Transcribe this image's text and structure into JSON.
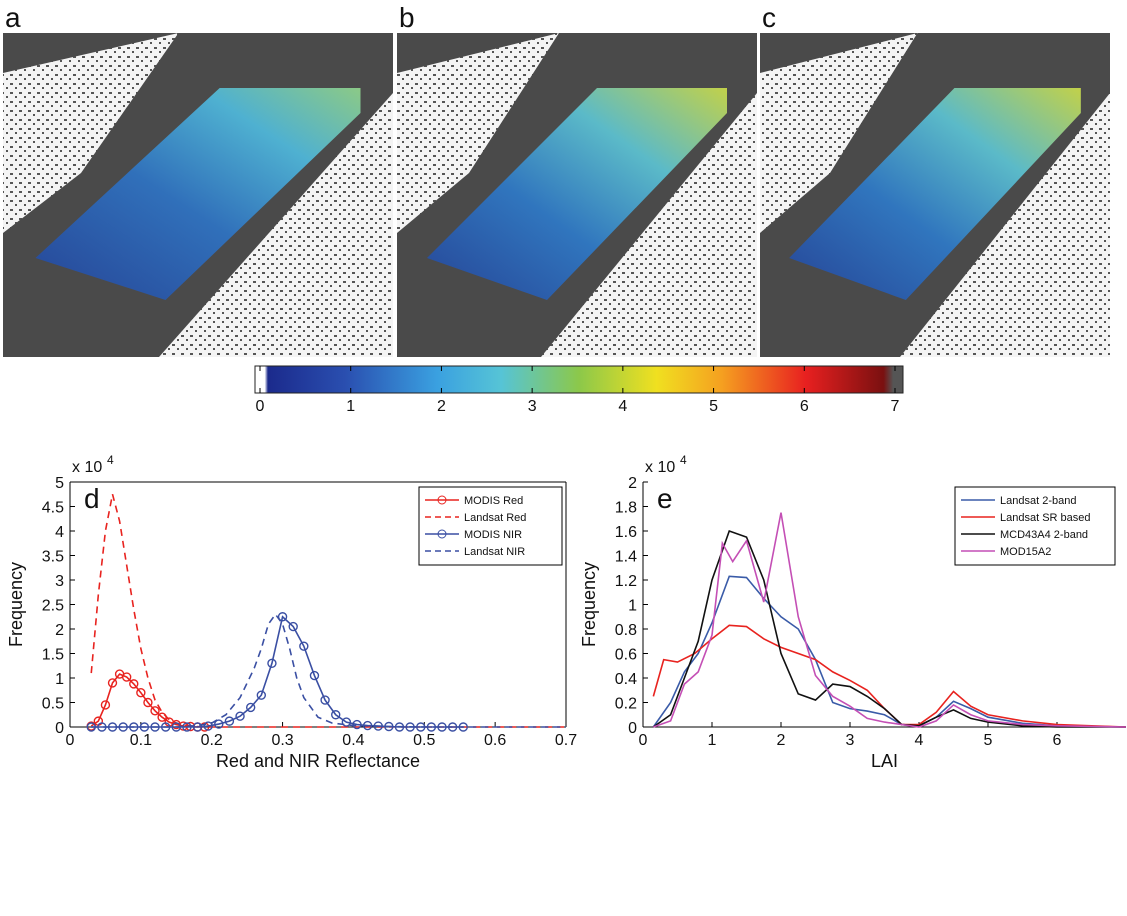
{
  "panels": {
    "labels": [
      "a",
      "b",
      "c"
    ]
  },
  "colorbar": {
    "xlim": [
      0,
      7
    ],
    "xticks": [
      0,
      1,
      2,
      3,
      4,
      5,
      6,
      7
    ]
  },
  "chart_data": [
    {
      "type": "line",
      "title": "d",
      "x_label": "Red and NIR Reflectance",
      "y_label": "Frequency",
      "y_multiplier": "x 10",
      "y_multiplier_exponent": "4",
      "xlim": [
        0,
        0.7
      ],
      "ylim": [
        0,
        5
      ],
      "xticks": [
        0,
        0.1,
        0.2,
        0.3,
        0.4,
        0.5,
        0.6,
        0.7
      ],
      "yticks": [
        0,
        0.5,
        1,
        1.5,
        2,
        2.5,
        3,
        3.5,
        4,
        4.5,
        5
      ],
      "legend": "upper right",
      "box": true,
      "series": [
        {
          "name": "MODIS Red",
          "color": "#e8231f",
          "linestyle": "solid",
          "marker": "circle",
          "x": [
            0.03,
            0.04,
            0.05,
            0.06,
            0.07,
            0.08,
            0.09,
            0.1,
            0.11,
            0.12,
            0.13,
            0.14,
            0.15,
            0.16,
            0.17,
            0.18,
            0.19
          ],
          "values": [
            0.02,
            0.12,
            0.45,
            0.9,
            1.08,
            1.02,
            0.88,
            0.7,
            0.5,
            0.33,
            0.2,
            0.1,
            0.05,
            0.02,
            0.01,
            0,
            0
          ]
        },
        {
          "name": "Landsat Red",
          "color": "#e8231f",
          "linestyle": "dashed",
          "marker": "none",
          "x": [
            0.03,
            0.04,
            0.05,
            0.06,
            0.07,
            0.08,
            0.09,
            0.1,
            0.11,
            0.12,
            0.13,
            0.14,
            0.15,
            0.16,
            0.18,
            0.2,
            0.3,
            0.5,
            0.7
          ],
          "values": [
            1.1,
            2.7,
            4.0,
            4.75,
            4.2,
            3.3,
            2.4,
            1.6,
            1.0,
            0.55,
            0.3,
            0.15,
            0.08,
            0.04,
            0.01,
            0,
            0,
            0,
            0
          ]
        },
        {
          "name": "MODIS NIR",
          "color": "#3a4fa3",
          "linestyle": "solid",
          "marker": "circle",
          "x": [
            0.03,
            0.045,
            0.06,
            0.075,
            0.09,
            0.105,
            0.12,
            0.135,
            0.15,
            0.165,
            0.18,
            0.195,
            0.21,
            0.225,
            0.24,
            0.255,
            0.27,
            0.285,
            0.3,
            0.315,
            0.33,
            0.345,
            0.36,
            0.375,
            0.39,
            0.405,
            0.42,
            0.435,
            0.45,
            0.465,
            0.48,
            0.495,
            0.51,
            0.525,
            0.54,
            0.555
          ],
          "values": [
            0,
            0,
            0,
            0,
            0,
            0,
            0,
            0,
            0,
            0,
            0,
            0.02,
            0.06,
            0.12,
            0.22,
            0.4,
            0.65,
            1.3,
            2.25,
            2.05,
            1.65,
            1.05,
            0.55,
            0.25,
            0.1,
            0.05,
            0.03,
            0.02,
            0.01,
            0,
            0,
            0,
            0,
            0,
            0,
            0
          ]
        },
        {
          "name": "Landsat NIR",
          "color": "#3a4fa3",
          "linestyle": "dashed",
          "marker": "none",
          "x": [
            0.03,
            0.15,
            0.18,
            0.2,
            0.22,
            0.24,
            0.26,
            0.27,
            0.28,
            0.29,
            0.3,
            0.31,
            0.32,
            0.33,
            0.35,
            0.37,
            0.4,
            0.45,
            0.5,
            0.7
          ],
          "values": [
            0,
            0,
            0.03,
            0.08,
            0.25,
            0.6,
            1.2,
            1.6,
            2.1,
            2.3,
            2.1,
            1.6,
            1.0,
            0.6,
            0.2,
            0.08,
            0.03,
            0.01,
            0,
            0
          ]
        }
      ]
    },
    {
      "type": "line",
      "title": "e",
      "x_label": "LAI",
      "y_label": "Frequency",
      "y_multiplier": "x 10",
      "y_multiplier_exponent": "4",
      "xlim": [
        0,
        7
      ],
      "ylim": [
        0,
        2
      ],
      "xticks": [
        0,
        1,
        2,
        3,
        4,
        5,
        6
      ],
      "yticks": [
        0,
        0.2,
        0.4,
        0.6,
        0.8,
        1,
        1.2,
        1.4,
        1.6,
        1.8,
        2
      ],
      "legend": "upper right",
      "box": false,
      "series": [
        {
          "name": "Landsat 2-band",
          "color": "#3a5ba8",
          "linestyle": "solid",
          "marker": "none",
          "x": [
            0.15,
            0.4,
            0.6,
            0.8,
            1.0,
            1.25,
            1.5,
            1.75,
            2.0,
            2.25,
            2.5,
            2.75,
            3.0,
            3.25,
            3.5,
            3.75,
            4.0,
            4.25,
            4.5,
            4.75,
            5.0,
            5.5,
            6.0,
            7.0
          ],
          "values": [
            0,
            0.2,
            0.45,
            0.6,
            0.85,
            1.23,
            1.22,
            1.05,
            0.9,
            0.8,
            0.55,
            0.2,
            0.15,
            0.13,
            0.1,
            0.02,
            0.01,
            0.08,
            0.21,
            0.15,
            0.08,
            0.03,
            0.01,
            0
          ]
        },
        {
          "name": "Landsat SR based",
          "color": "#e8231f",
          "linestyle": "solid",
          "marker": "none",
          "x": [
            0.15,
            0.3,
            0.5,
            0.75,
            1.0,
            1.25,
            1.5,
            1.75,
            2.0,
            2.5,
            2.75,
            3.0,
            3.25,
            3.5,
            3.75,
            4.0,
            4.25,
            4.5,
            4.75,
            5.0,
            5.5,
            6.0,
            6.5,
            7.0
          ],
          "values": [
            0.25,
            0.55,
            0.53,
            0.6,
            0.72,
            0.83,
            0.82,
            0.72,
            0.65,
            0.55,
            0.45,
            0.38,
            0.3,
            0.15,
            0.02,
            0.02,
            0.12,
            0.29,
            0.17,
            0.1,
            0.05,
            0.02,
            0.01,
            0
          ]
        },
        {
          "name": "MCD43A4 2-band",
          "color": "#111111",
          "linestyle": "solid",
          "marker": "none",
          "x": [
            0.15,
            0.4,
            0.6,
            0.8,
            1.0,
            1.25,
            1.5,
            1.75,
            2.0,
            2.25,
            2.5,
            2.75,
            3.0,
            3.25,
            3.5,
            3.75,
            4.0,
            4.25,
            4.5,
            4.75,
            5.0,
            5.5,
            6.0,
            7.0
          ],
          "values": [
            0,
            0.1,
            0.4,
            0.7,
            1.2,
            1.6,
            1.55,
            1.2,
            0.6,
            0.27,
            0.22,
            0.35,
            0.33,
            0.25,
            0.15,
            0.02,
            0.01,
            0.08,
            0.14,
            0.07,
            0.04,
            0.01,
            0,
            0
          ]
        },
        {
          "name": "MOD15A2",
          "color": "#c44fb5",
          "linestyle": "solid",
          "marker": "none",
          "x": [
            0.15,
            0.4,
            0.6,
            0.8,
            1.0,
            1.15,
            1.3,
            1.5,
            1.75,
            2.0,
            2.25,
            2.5,
            2.75,
            3.0,
            3.25,
            3.5,
            3.75,
            4.0,
            4.25,
            4.5,
            4.75,
            5.0,
            5.5,
            6.0,
            7.0
          ],
          "values": [
            0,
            0.05,
            0.35,
            0.45,
            0.75,
            1.5,
            1.35,
            1.52,
            1.02,
            1.75,
            0.9,
            0.42,
            0.25,
            0.17,
            0.07,
            0.04,
            0.02,
            0,
            0.05,
            0.18,
            0.1,
            0.05,
            0.02,
            0.01,
            0
          ]
        }
      ]
    }
  ]
}
